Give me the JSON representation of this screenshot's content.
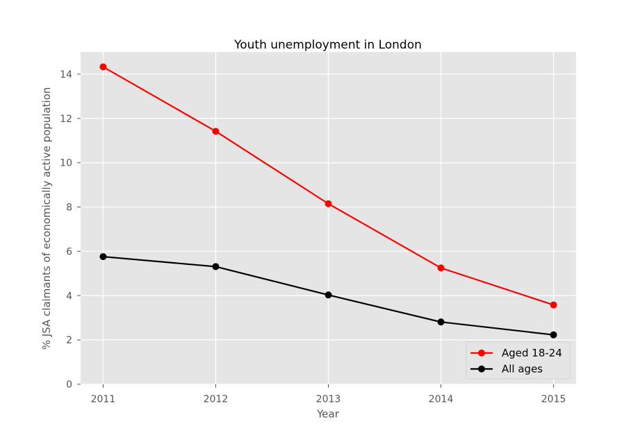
{
  "chart_data": {
    "type": "line",
    "title": "Youth unemployment in London",
    "xlabel": "Year",
    "ylabel": "% JSA claimants of economically active population",
    "x": [
      2011,
      2012,
      2013,
      2014,
      2015
    ],
    "x_tick_labels": [
      "2011",
      "2012",
      "2013",
      "2014",
      "2015"
    ],
    "xlim": [
      2010.8,
      2015.2
    ],
    "ylim": [
      0,
      15
    ],
    "y_ticks": [
      0,
      2,
      4,
      6,
      8,
      10,
      12,
      14
    ],
    "y_tick_labels": [
      "0",
      "2",
      "4",
      "6",
      "8",
      "10",
      "12",
      "14"
    ],
    "grid": true,
    "legend_position": "lower-right",
    "background_color": "#e5e5e5",
    "series": [
      {
        "name": "Aged 18-24",
        "color": "#ff0000",
        "marker": "circle",
        "values": [
          14.33,
          11.42,
          8.15,
          5.25,
          3.58
        ]
      },
      {
        "name": "All ages",
        "color": "#000000",
        "marker": "circle",
        "values": [
          5.76,
          5.31,
          4.03,
          2.81,
          2.23
        ]
      }
    ]
  }
}
